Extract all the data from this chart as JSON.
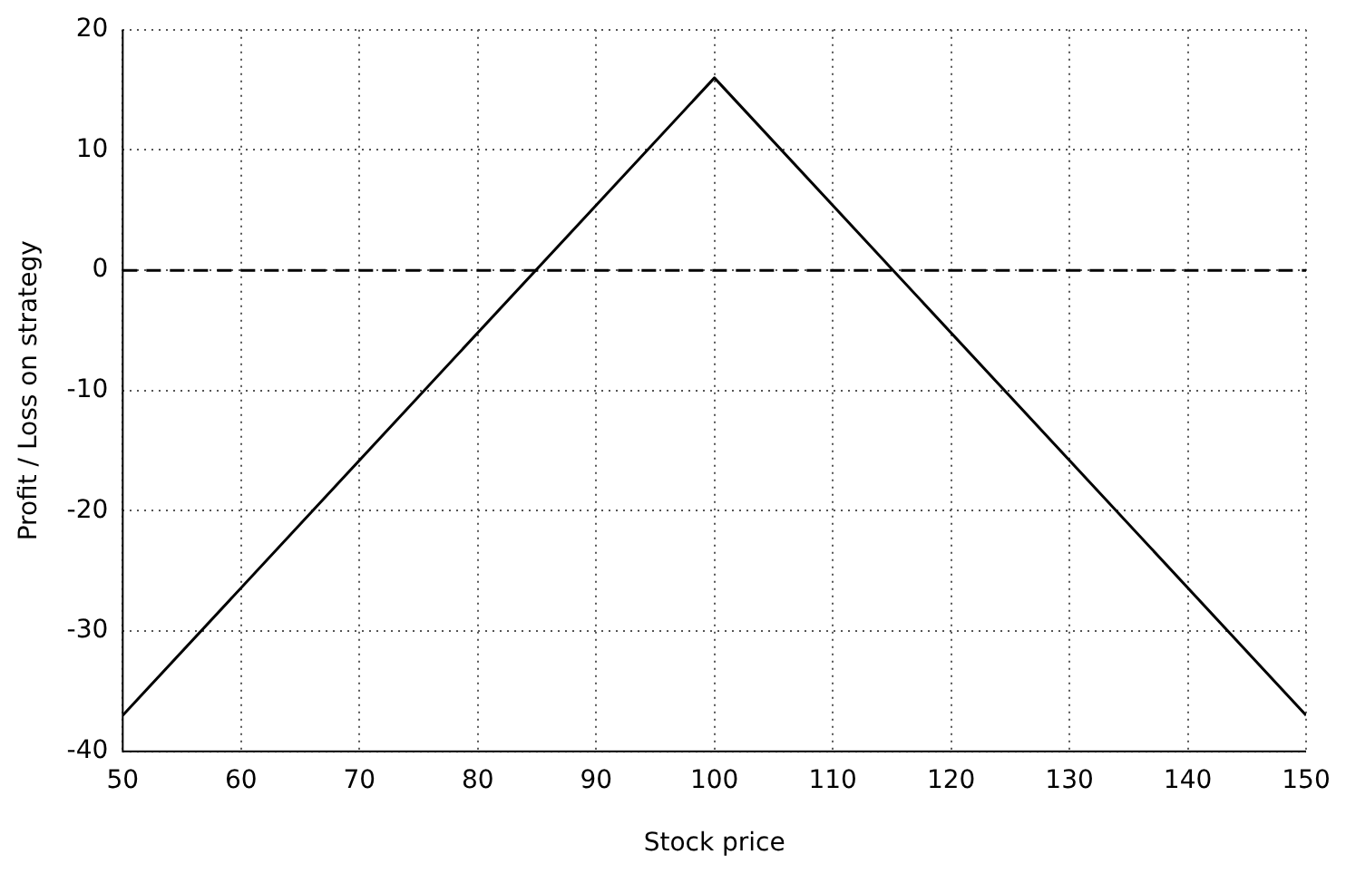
{
  "chart_data": {
    "type": "line",
    "xlabel": "Stock price",
    "ylabel": "Profit / Loss on strategy",
    "x": [
      50,
      100,
      150
    ],
    "series": [
      {
        "color": "#000000",
        "values": [
          -37,
          16,
          -37
        ]
      }
    ],
    "xlim": [
      50,
      150
    ],
    "xticks": [
      50,
      60,
      70,
      80,
      90,
      100,
      110,
      120,
      130,
      140,
      150
    ],
    "ylim": [
      -40,
      20
    ],
    "yticks": [
      -40,
      -30,
      -20,
      -10,
      0,
      10,
      20
    ],
    "ref_lines": [
      {
        "axis": "y",
        "value": 0,
        "color": "#000000",
        "line_style": "dashed"
      }
    ],
    "grid": true,
    "legend": false,
    "marker": "none",
    "line_style": "solid"
  }
}
